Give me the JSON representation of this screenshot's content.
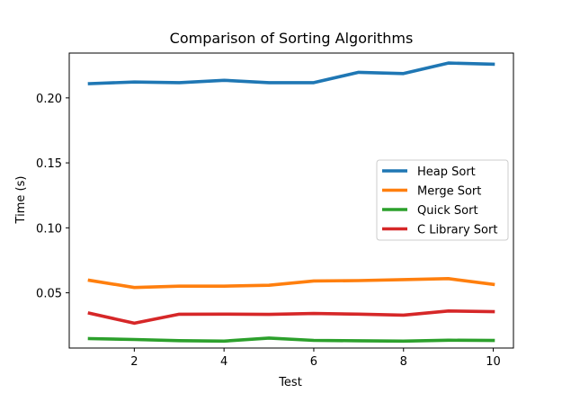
{
  "chart_data": {
    "type": "line",
    "title": "Comparison of Sorting Algorithms",
    "xlabel": "Test",
    "ylabel": "Time (s)",
    "x": [
      1,
      2,
      3,
      4,
      5,
      6,
      7,
      8,
      9,
      10
    ],
    "xlim": [
      0.55,
      10.45
    ],
    "ylim": [
      0.0075,
      0.2345
    ],
    "xticks": [
      2,
      4,
      6,
      8,
      10
    ],
    "xtick_labels": [
      "2",
      "4",
      "6",
      "8",
      "10"
    ],
    "yticks": [
      0.05,
      0.1,
      0.15,
      0.2
    ],
    "ytick_labels": [
      "0.05",
      "0.10",
      "0.15",
      "0.20"
    ],
    "grid": false,
    "legend_position": "center-right",
    "series": [
      {
        "name": "Heap Sort",
        "color": "#1f77b4",
        "values": [
          0.211,
          0.2122,
          0.2117,
          0.2135,
          0.2117,
          0.2117,
          0.2197,
          0.2187,
          0.2268,
          0.2259
        ]
      },
      {
        "name": "Merge Sort",
        "color": "#ff7f0e",
        "values": [
          0.0596,
          0.0541,
          0.0551,
          0.0551,
          0.0558,
          0.0591,
          0.0594,
          0.0602,
          0.0609,
          0.0565
        ]
      },
      {
        "name": "Quick Sort",
        "color": "#2ca02c",
        "values": [
          0.0148,
          0.0141,
          0.0132,
          0.0128,
          0.0152,
          0.0134,
          0.0131,
          0.0128,
          0.0135,
          0.0133
        ]
      },
      {
        "name": "C Library Sort",
        "color": "#d62728",
        "values": [
          0.0343,
          0.0266,
          0.0335,
          0.0336,
          0.0334,
          0.0341,
          0.0336,
          0.0328,
          0.036,
          0.0355
        ]
      }
    ]
  }
}
